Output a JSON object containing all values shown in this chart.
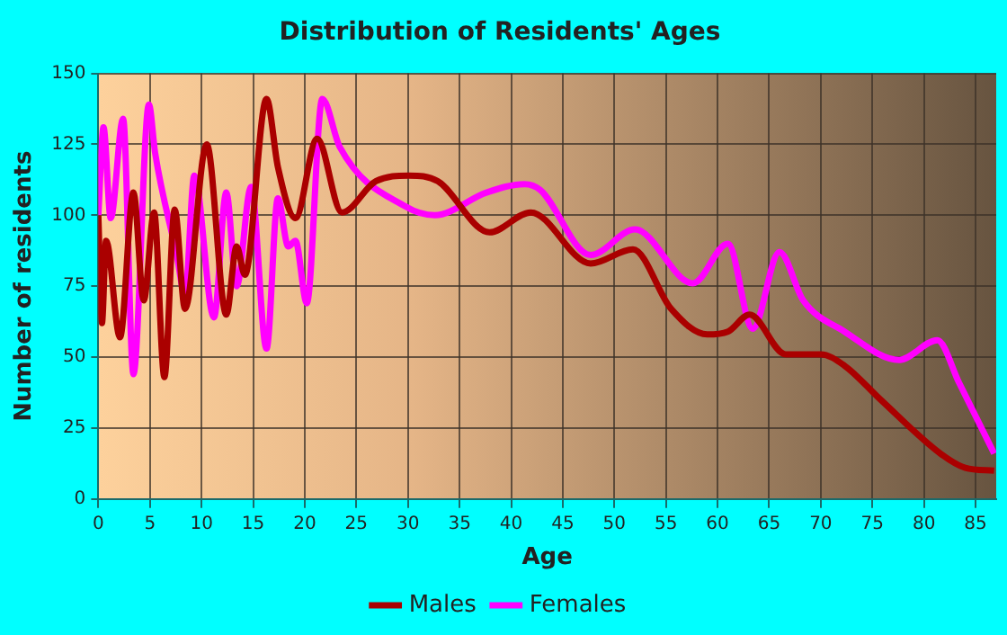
{
  "chart_data": {
    "type": "line",
    "title": "Distribution of Residents' Ages",
    "xlabel": "Age",
    "ylabel": "Number of residents",
    "xlim": [
      0,
      87
    ],
    "xticks": [
      0,
      5,
      10,
      15,
      20,
      25,
      30,
      35,
      40,
      45,
      50,
      55,
      60,
      65,
      70,
      75,
      80,
      85
    ],
    "ylim": [
      0,
      150
    ],
    "yticks": [
      0,
      25,
      50,
      75,
      100,
      125,
      150
    ],
    "grid": true,
    "legend": "bottom",
    "marker": "none",
    "line_style": "solid",
    "series": [
      {
        "name": "Males",
        "color": "#aa0000",
        "x": [
          0,
          0.35,
          0.75,
          2.1,
          3.4,
          4.4,
          5.4,
          6.4,
          7.4,
          8.4,
          10.5,
          12.4,
          13.4,
          14.2,
          16.3,
          17.4,
          19.1,
          21.2,
          23.6,
          26.9,
          30.1,
          32.9,
          37.9,
          41.9,
          47.7,
          51.8,
          55.5,
          59,
          61,
          63.1,
          66.6,
          70,
          72.3,
          75.8,
          81.6,
          84,
          86.8
        ],
        "values": [
          100,
          62,
          91,
          57,
          108,
          70,
          101,
          43,
          102,
          67,
          125,
          65,
          89,
          79,
          141,
          117,
          99,
          127,
          101,
          112,
          114,
          112,
          94,
          101,
          83,
          88,
          67,
          58,
          59,
          65,
          51,
          51,
          47,
          35,
          16,
          11,
          10
        ]
      },
      {
        "name": "Females",
        "color": "#ff00ff",
        "x": [
          0,
          0.5,
          1.2,
          2.4,
          3.4,
          4.9,
          5.5,
          7.6,
          8.4,
          9.3,
          11.2,
          12.4,
          13.4,
          14.8,
          16.3,
          17.4,
          18.4,
          19.1,
          20.2,
          21.7,
          23.4,
          29.8,
          32.6,
          37.6,
          41.3,
          42.8,
          47.7,
          52,
          57.6,
          61,
          63.4,
          66,
          68.3,
          72.3,
          77.6,
          81.3,
          83.4,
          86.8
        ],
        "values": [
          100,
          131,
          99,
          134,
          44,
          139,
          122,
          86,
          72,
          114,
          64,
          108,
          75,
          110,
          53,
          106,
          89,
          91,
          69,
          141,
          124,
          103,
          100,
          108,
          111,
          109,
          86,
          95,
          76,
          90,
          60,
          87,
          70,
          59,
          49,
          56,
          41,
          16
        ]
      }
    ]
  }
}
